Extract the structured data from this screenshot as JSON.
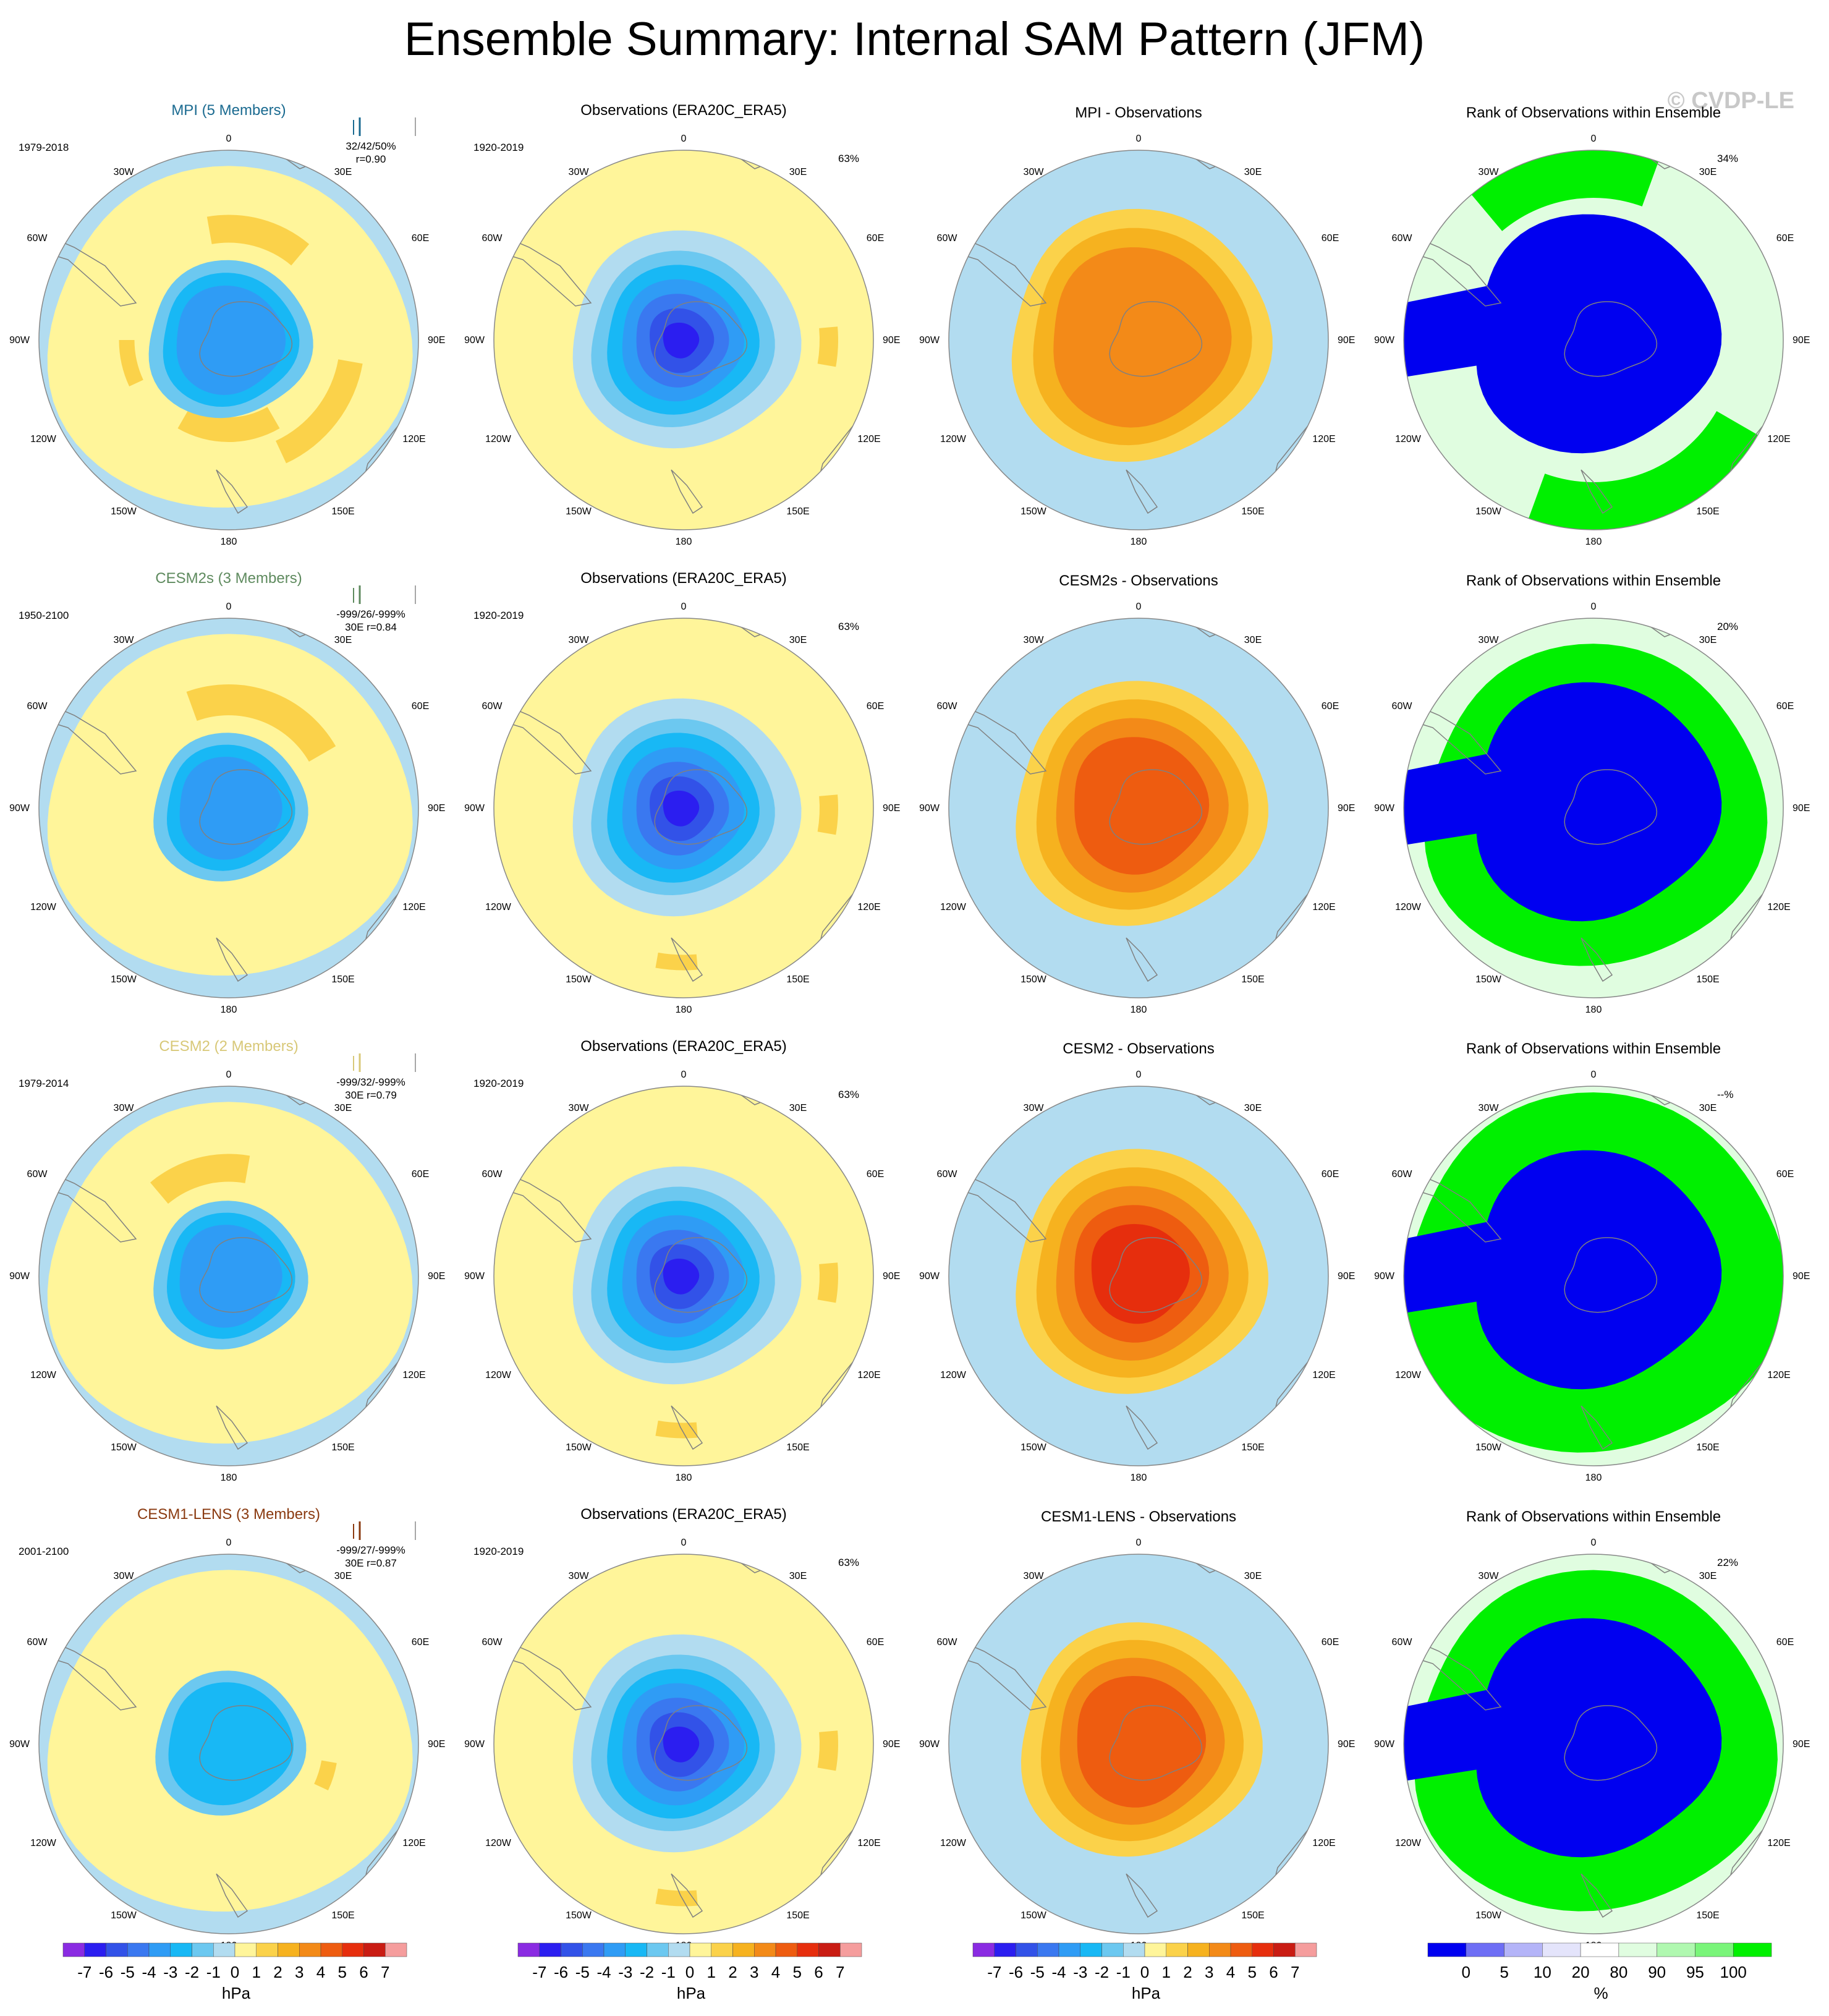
{
  "figure": {
    "title": "Ensemble Summary: Internal SAM Pattern (JFM)",
    "watermark": "© CVDP-LE"
  },
  "colorbars": {
    "hpa": {
      "ticks": [
        "-7",
        "-6",
        "-5",
        "-4",
        "-3",
        "-2",
        "-1",
        "0",
        "1",
        "2",
        "3",
        "4",
        "5",
        "6",
        "7"
      ],
      "unit": "hPa",
      "colors": [
        "#8a2be2",
        "#2b1ef0",
        "#3252e8",
        "#3a78f0",
        "#2f9cf5",
        "#18b8f5",
        "#6cc8f0",
        "#b2dcf0",
        "#fff59a",
        "#fbd24a",
        "#f6b21f",
        "#f38a18",
        "#ee5c10",
        "#e62e0d",
        "#c91c13",
        "#f59d9d"
      ]
    },
    "rank": {
      "ticks": [
        "0",
        "5",
        "10",
        "20",
        "80",
        "90",
        "95",
        "100"
      ],
      "unit": "%",
      "colors": [
        "#0000f0",
        "#6e6ef5",
        "#b4b4f8",
        "#e4e4fb",
        "#ffffff",
        "#e0fde0",
        "#b0f8b0",
        "#7af57a",
        "#00f000"
      ]
    }
  },
  "rows": [
    {
      "model": "MPI (5 Members)",
      "model_color": "#1a6a90",
      "model_period": "1979-2018",
      "stats": "32/42/50%",
      "corr": "r=0.90",
      "obs_title": "Observations (ERA20C_ERA5)",
      "obs_period": "1920-2019",
      "obs_pct": "63%",
      "diff_title": "MPI - Observations",
      "rank_title": "Rank of Observations within Ensemble",
      "rank_pct": "34%"
    },
    {
      "model": "CESM2s (3 Members)",
      "model_color": "#5e8a5e",
      "model_period": "1950-2100",
      "stats": "-999/26/-999%",
      "corr": "30E r=0.84",
      "obs_title": "Observations (ERA20C_ERA5)",
      "obs_period": "1920-2019",
      "obs_pct": "63%",
      "diff_title": "CESM2s - Observations",
      "rank_title": "Rank of Observations within Ensemble",
      "rank_pct": "20%"
    },
    {
      "model": "CESM2 (2 Members)",
      "model_color": "#d8c878",
      "model_period": "1979-2014",
      "stats": "-999/32/-999%",
      "corr": "30E r=0.79",
      "obs_title": "Observations (ERA20C_ERA5)",
      "obs_period": "1920-2019",
      "obs_pct": "63%",
      "diff_title": "CESM2 - Observations",
      "rank_title": "Rank of Observations within Ensemble",
      "rank_pct": "--%"
    },
    {
      "model": "CESM1-LENS (3 Members)",
      "model_color": "#8a3a10",
      "model_period": "2001-2100",
      "stats": "-999/27/-999%",
      "corr": "30E r=0.87",
      "obs_title": "Observations (ERA20C_ERA5)",
      "obs_period": "1920-2019",
      "obs_pct": "63%",
      "diff_title": "CESM1-LENS - Observations",
      "rank_title": "Rank of Observations within Ensemble",
      "rank_pct": "22%"
    }
  ],
  "map_labels": {
    "lon_0": "0",
    "lon_30w": "30W",
    "lon_30e": "30E",
    "lon_60w": "60W",
    "lon_60e": "60E",
    "lon_90w": "90W",
    "lon_90e": "90E",
    "lon_120w": "120W",
    "lon_120e": "120E",
    "lon_150w": "150W",
    "lon_150e": "150E",
    "lon_180": "180"
  },
  "palette": {
    "ocean_blue": "#b2dcf0",
    "pale_yellow": "#fff59a",
    "gold": "#fbd24a",
    "neg1": "#6cc8f0",
    "neg2": "#18b8f5",
    "neg3": "#2f9cf5",
    "neg4": "#3a78f0",
    "neg5": "#3252e8",
    "neg6": "#2b1ef0",
    "pos2": "#f6b21f",
    "pos3": "#f38a18",
    "pos4": "#ee5c10",
    "pos5": "#e62e0d",
    "rank_blue": "#0000f0",
    "rank_green": "#00f000",
    "rank_pale": "#e0fde0",
    "land_line": "#808080"
  }
}
